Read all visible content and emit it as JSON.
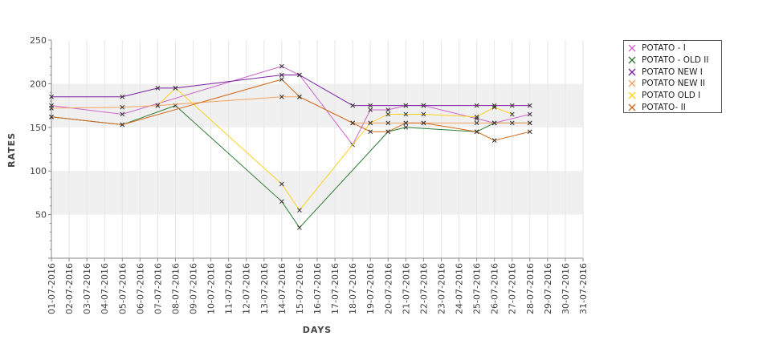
{
  "chart_data": {
    "type": "line",
    "title": "",
    "xlabel": "DAYS",
    "ylabel": "RATES",
    "ylim": [
      0,
      250
    ],
    "yticks": [
      50,
      100,
      150,
      200,
      250
    ],
    "grid": true,
    "legend_position": "top-right",
    "categories": [
      "01-07-2016",
      "02-07-2016",
      "03-07-2016",
      "04-07-2016",
      "05-07-2016",
      "06-07-2016",
      "07-07-2016",
      "08-07-2016",
      "09-07-2016",
      "10-07-2016",
      "11-07-2016",
      "12-07-2016",
      "13-07-2016",
      "14-07-2016",
      "15-07-2016",
      "16-07-2016",
      "17-07-2016",
      "18-07-2016",
      "19-07-2016",
      "20-07-2016",
      "21-07-2016",
      "22-07-2016",
      "23-07-2016",
      "24-07-2016",
      "25-07-2016",
      "26-07-2016",
      "27-07-2016",
      "28-07-2016",
      "29-07-2016",
      "30-07-2016",
      "31-07-2016"
    ],
    "series": [
      {
        "name": "POTATO - I",
        "color": "#cc66cc",
        "points": [
          [
            1,
            175
          ],
          [
            5,
            165
          ],
          [
            14,
            220
          ],
          [
            15,
            210
          ],
          [
            18,
            130
          ],
          [
            19,
            170
          ],
          [
            20,
            170
          ],
          [
            21,
            175
          ],
          [
            22,
            175
          ],
          [
            25,
            160
          ],
          [
            26,
            155
          ],
          [
            28,
            165
          ]
        ]
      },
      {
        "name": "POTATO - OLD II",
        "color": "#2e7d32",
        "points": [
          [
            1,
            162
          ],
          [
            5,
            153
          ],
          [
            8,
            175
          ],
          [
            14,
            65
          ],
          [
            15,
            35
          ],
          [
            20,
            145
          ],
          [
            21,
            150
          ],
          [
            25,
            145
          ],
          [
            26,
            155
          ],
          [
            28,
            155
          ]
        ]
      },
      {
        "name": "POTATO NEW I",
        "color": "#7b1fa2",
        "points": [
          [
            1,
            185
          ],
          [
            5,
            185
          ],
          [
            7,
            195
          ],
          [
            8,
            195
          ],
          [
            14,
            210
          ],
          [
            15,
            210
          ],
          [
            18,
            175
          ],
          [
            19,
            175
          ],
          [
            21,
            175
          ],
          [
            22,
            175
          ],
          [
            25,
            175
          ],
          [
            26,
            175
          ],
          [
            27,
            175
          ],
          [
            28,
            175
          ]
        ]
      },
      {
        "name": "POTATO NEW II",
        "color": "#f4a460",
        "points": [
          [
            1,
            172
          ],
          [
            5,
            173
          ],
          [
            7,
            175
          ],
          [
            14,
            185
          ],
          [
            15,
            185
          ],
          [
            18,
            155
          ],
          [
            19,
            155
          ],
          [
            20,
            155
          ],
          [
            21,
            155
          ],
          [
            22,
            155
          ],
          [
            25,
            155
          ],
          [
            26,
            155
          ],
          [
            27,
            155
          ],
          [
            28,
            155
          ]
        ]
      },
      {
        "name": "POTATO OLD I",
        "color": "#ffd11a",
        "points": [
          [
            7,
            175
          ],
          [
            8,
            195
          ],
          [
            14,
            85
          ],
          [
            15,
            55
          ],
          [
            19,
            155
          ],
          [
            20,
            165
          ],
          [
            21,
            165
          ],
          [
            22,
            165
          ],
          [
            25,
            162
          ],
          [
            26,
            173
          ],
          [
            27,
            165
          ]
        ]
      },
      {
        "name": "POTATO- II",
        "color": "#d2691e",
        "points": [
          [
            1,
            162
          ],
          [
            5,
            153
          ],
          [
            14,
            205
          ],
          [
            15,
            185
          ],
          [
            18,
            155
          ],
          [
            19,
            145
          ],
          [
            20,
            145
          ],
          [
            21,
            155
          ],
          [
            22,
            155
          ],
          [
            25,
            145
          ],
          [
            26,
            135
          ],
          [
            28,
            145
          ]
        ]
      }
    ]
  }
}
